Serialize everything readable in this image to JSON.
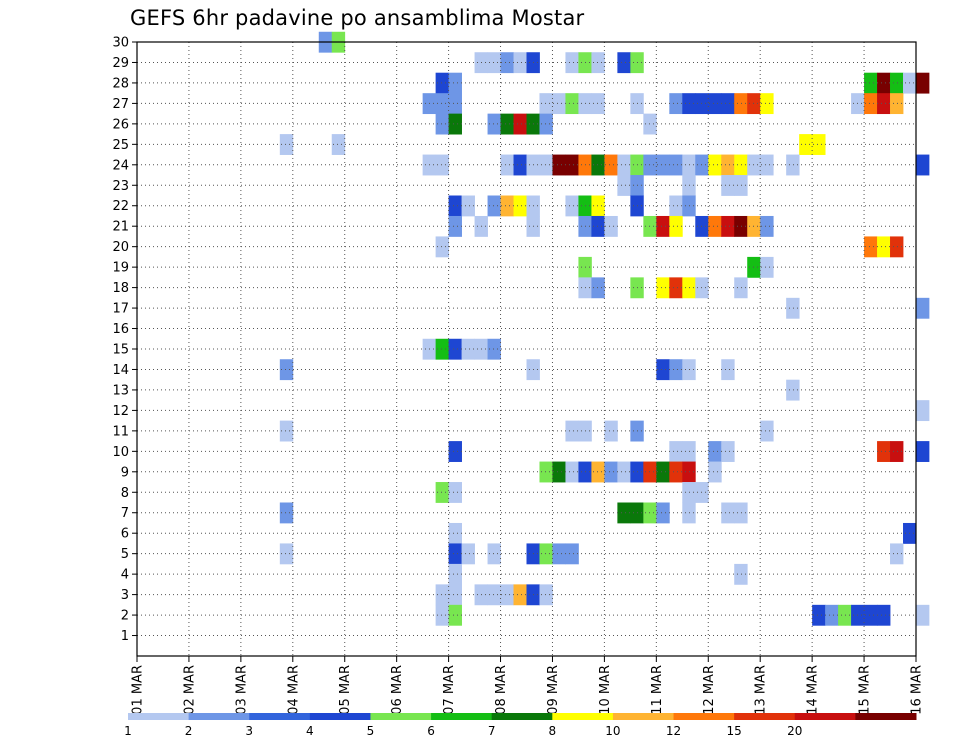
{
  "title": "GEFS 6hr padavine po ansamblima Mostar",
  "chart_data": {
    "type": "heatmap",
    "title": "GEFS 6hr padavine po ansamblima Mostar",
    "xlabel": "",
    "ylabel": "",
    "x_ticks": [
      "01 MAR",
      "02 MAR",
      "03 MAR",
      "04 MAR",
      "05 MAR",
      "06 MAR",
      "07 MAR",
      "08 MAR",
      "09 MAR",
      "10 MAR",
      "11 MAR",
      "12 MAR",
      "13 MAR",
      "14 MAR",
      "15 MAR",
      "16 MAR"
    ],
    "y_ticks": [
      1,
      2,
      3,
      4,
      5,
      6,
      7,
      8,
      9,
      10,
      11,
      12,
      13,
      14,
      15,
      16,
      17,
      18,
      19,
      20,
      21,
      22,
      23,
      24,
      25,
      26,
      27,
      28,
      29,
      30
    ],
    "ylim": [
      0,
      30
    ],
    "grid": true,
    "legend_position": "bottom",
    "colorbar": {
      "labels": [
        "1",
        "2",
        "3",
        "4",
        "5",
        "6",
        "7",
        "8",
        "10",
        "12",
        "15",
        "20"
      ],
      "colors": [
        "#b4c8f0",
        "#6e96e6",
        "#3264dc",
        "#1e46d2",
        "#78e650",
        "#14be14",
        "#0a780a",
        "#ffff00",
        "#ffb432",
        "#ff780a",
        "#e1320a",
        "#c80f0f",
        "#780000"
      ]
    },
    "cells_note": "each cell: [day-of-March (step 0.25 = 6 h), ensemble member, colour class index 0-12]",
    "cells": [
      [
        4.5,
        30,
        1
      ],
      [
        4.75,
        30,
        4
      ],
      [
        7.5,
        29,
        0
      ],
      [
        7.75,
        29,
        0
      ],
      [
        8.0,
        29,
        1
      ],
      [
        8.25,
        29,
        0
      ],
      [
        8.5,
        29,
        3
      ],
      [
        9.25,
        29,
        0
      ],
      [
        9.5,
        29,
        4
      ],
      [
        9.75,
        29,
        0
      ],
      [
        10.25,
        29,
        3
      ],
      [
        10.5,
        29,
        4
      ],
      [
        6.75,
        28,
        3
      ],
      [
        7.0,
        28,
        1
      ],
      [
        15.0,
        28,
        5
      ],
      [
        15.25,
        28,
        12
      ],
      [
        15.5,
        28,
        5
      ],
      [
        15.75,
        28,
        0
      ],
      [
        16.0,
        28,
        12
      ],
      [
        6.5,
        27,
        1
      ],
      [
        6.75,
        27,
        1
      ],
      [
        7.0,
        27,
        1
      ],
      [
        8.75,
        27,
        0
      ],
      [
        9.0,
        27,
        0
      ],
      [
        9.25,
        27,
        4
      ],
      [
        9.5,
        27,
        0
      ],
      [
        9.75,
        27,
        0
      ],
      [
        10.5,
        27,
        0
      ],
      [
        11.25,
        27,
        1
      ],
      [
        11.5,
        27,
        3
      ],
      [
        11.75,
        27,
        3
      ],
      [
        12.0,
        27,
        3
      ],
      [
        12.25,
        27,
        3
      ],
      [
        12.5,
        27,
        9
      ],
      [
        12.75,
        27,
        10
      ],
      [
        13.0,
        27,
        7
      ],
      [
        14.75,
        27,
        0
      ],
      [
        15.0,
        27,
        9
      ],
      [
        15.25,
        27,
        11
      ],
      [
        15.5,
        27,
        8
      ],
      [
        6.75,
        26,
        1
      ],
      [
        7.0,
        26,
        6
      ],
      [
        7.75,
        26,
        1
      ],
      [
        8.0,
        26,
        6
      ],
      [
        8.25,
        26,
        11
      ],
      [
        8.5,
        26,
        6
      ],
      [
        8.75,
        26,
        1
      ],
      [
        10.75,
        26,
        0
      ],
      [
        3.75,
        25,
        0
      ],
      [
        4.75,
        25,
        0
      ],
      [
        13.75,
        25,
        7
      ],
      [
        14.0,
        25,
        7
      ],
      [
        6.5,
        24,
        0
      ],
      [
        6.75,
        24,
        0
      ],
      [
        8.0,
        24,
        0
      ],
      [
        8.25,
        24,
        3
      ],
      [
        8.5,
        24,
        0
      ],
      [
        8.75,
        24,
        0
      ],
      [
        9.0,
        24,
        12
      ],
      [
        9.25,
        24,
        12
      ],
      [
        9.5,
        24,
        9
      ],
      [
        9.75,
        24,
        6
      ],
      [
        10.0,
        24,
        9
      ],
      [
        10.25,
        24,
        0
      ],
      [
        10.5,
        24,
        4
      ],
      [
        10.75,
        24,
        1
      ],
      [
        11.0,
        24,
        1
      ],
      [
        11.25,
        24,
        1
      ],
      [
        11.5,
        24,
        0
      ],
      [
        11.75,
        24,
        1
      ],
      [
        12.0,
        24,
        7
      ],
      [
        12.25,
        24,
        8
      ],
      [
        12.5,
        24,
        7
      ],
      [
        12.75,
        24,
        0
      ],
      [
        13.0,
        24,
        0
      ],
      [
        13.5,
        24,
        0
      ],
      [
        16.0,
        24,
        3
      ],
      [
        10.25,
        23,
        0
      ],
      [
        10.5,
        23,
        1
      ],
      [
        11.5,
        23,
        0
      ],
      [
        12.25,
        23,
        0
      ],
      [
        12.5,
        23,
        0
      ],
      [
        7.0,
        22,
        3
      ],
      [
        7.25,
        22,
        0
      ],
      [
        7.75,
        22,
        1
      ],
      [
        8.0,
        22,
        8
      ],
      [
        8.25,
        22,
        7
      ],
      [
        8.5,
        22,
        0
      ],
      [
        9.25,
        22,
        0
      ],
      [
        9.5,
        22,
        5
      ],
      [
        9.75,
        22,
        7
      ],
      [
        10.5,
        22,
        3
      ],
      [
        11.25,
        22,
        0
      ],
      [
        11.5,
        22,
        1
      ],
      [
        7.0,
        21,
        1
      ],
      [
        7.5,
        21,
        0
      ],
      [
        8.5,
        21,
        0
      ],
      [
        9.5,
        21,
        1
      ],
      [
        9.75,
        21,
        3
      ],
      [
        10.0,
        21,
        0
      ],
      [
        10.75,
        21,
        4
      ],
      [
        11.0,
        21,
        11
      ],
      [
        11.25,
        21,
        7
      ],
      [
        11.75,
        21,
        3
      ],
      [
        12.0,
        21,
        9
      ],
      [
        12.25,
        21,
        11
      ],
      [
        12.5,
        21,
        12
      ],
      [
        12.75,
        21,
        8
      ],
      [
        13.0,
        21,
        1
      ],
      [
        6.75,
        20,
        0
      ],
      [
        15.0,
        20,
        9
      ],
      [
        15.25,
        20,
        7
      ],
      [
        15.5,
        20,
        10
      ],
      [
        9.5,
        19,
        4
      ],
      [
        12.75,
        19,
        5
      ],
      [
        13.0,
        19,
        0
      ],
      [
        9.5,
        18,
        0
      ],
      [
        9.75,
        18,
        1
      ],
      [
        10.5,
        18,
        4
      ],
      [
        11.0,
        18,
        7
      ],
      [
        11.25,
        18,
        10
      ],
      [
        11.5,
        18,
        7
      ],
      [
        11.75,
        18,
        0
      ],
      [
        12.5,
        18,
        0
      ],
      [
        13.5,
        17,
        0
      ],
      [
        16.0,
        17,
        1
      ],
      [
        6.5,
        15,
        0
      ],
      [
        6.75,
        15,
        5
      ],
      [
        7.0,
        15,
        3
      ],
      [
        7.25,
        15,
        0
      ],
      [
        7.5,
        15,
        0
      ],
      [
        7.75,
        15,
        1
      ],
      [
        3.75,
        14,
        1
      ],
      [
        8.5,
        14,
        0
      ],
      [
        11.0,
        14,
        3
      ],
      [
        11.25,
        14,
        1
      ],
      [
        11.5,
        14,
        0
      ],
      [
        12.25,
        14,
        0
      ],
      [
        13.5,
        13,
        0
      ],
      [
        16.0,
        12,
        0
      ],
      [
        3.75,
        11,
        0
      ],
      [
        9.25,
        11,
        0
      ],
      [
        9.5,
        11,
        0
      ],
      [
        10.0,
        11,
        0
      ],
      [
        10.5,
        11,
        1
      ],
      [
        13.0,
        11,
        0
      ],
      [
        7.0,
        10,
        3
      ],
      [
        11.25,
        10,
        0
      ],
      [
        11.5,
        10,
        0
      ],
      [
        12.0,
        10,
        1
      ],
      [
        12.25,
        10,
        0
      ],
      [
        15.25,
        10,
        10
      ],
      [
        15.5,
        10,
        11
      ],
      [
        16.0,
        10,
        3
      ],
      [
        8.75,
        9,
        4
      ],
      [
        9.0,
        9,
        6
      ],
      [
        9.25,
        9,
        0
      ],
      [
        9.5,
        9,
        3
      ],
      [
        9.75,
        9,
        8
      ],
      [
        10.0,
        9,
        1
      ],
      [
        10.25,
        9,
        0
      ],
      [
        10.5,
        9,
        3
      ],
      [
        10.75,
        9,
        10
      ],
      [
        11.0,
        9,
        6
      ],
      [
        11.25,
        9,
        10
      ],
      [
        11.5,
        9,
        11
      ],
      [
        12.0,
        9,
        0
      ],
      [
        6.75,
        8,
        4
      ],
      [
        7.0,
        8,
        0
      ],
      [
        11.5,
        8,
        0
      ],
      [
        11.75,
        8,
        0
      ],
      [
        3.75,
        7,
        1
      ],
      [
        10.25,
        7,
        6
      ],
      [
        10.5,
        7,
        6
      ],
      [
        10.75,
        7,
        4
      ],
      [
        11.0,
        7,
        1
      ],
      [
        11.5,
        7,
        0
      ],
      [
        12.25,
        7,
        0
      ],
      [
        12.5,
        7,
        0
      ],
      [
        7.0,
        6,
        0
      ],
      [
        15.75,
        6,
        3
      ],
      [
        3.75,
        5,
        0
      ],
      [
        7.0,
        5,
        3
      ],
      [
        7.25,
        5,
        0
      ],
      [
        7.75,
        5,
        0
      ],
      [
        8.5,
        5,
        3
      ],
      [
        8.75,
        5,
        4
      ],
      [
        9.0,
        5,
        1
      ],
      [
        9.25,
        5,
        1
      ],
      [
        15.5,
        5,
        0
      ],
      [
        7.0,
        4,
        0
      ],
      [
        12.5,
        4,
        0
      ],
      [
        6.75,
        3,
        0
      ],
      [
        7.0,
        3,
        0
      ],
      [
        7.5,
        3,
        0
      ],
      [
        7.75,
        3,
        0
      ],
      [
        8.0,
        3,
        0
      ],
      [
        8.25,
        3,
        8
      ],
      [
        8.5,
        3,
        3
      ],
      [
        8.75,
        3,
        0
      ],
      [
        6.75,
        2,
        0
      ],
      [
        7.0,
        2,
        4
      ],
      [
        14.0,
        2,
        3
      ],
      [
        14.25,
        2,
        1
      ],
      [
        14.5,
        2,
        4
      ],
      [
        14.75,
        2,
        3
      ],
      [
        15.0,
        2,
        3
      ],
      [
        15.25,
        2,
        3
      ],
      [
        16.0,
        2,
        0
      ]
    ]
  }
}
